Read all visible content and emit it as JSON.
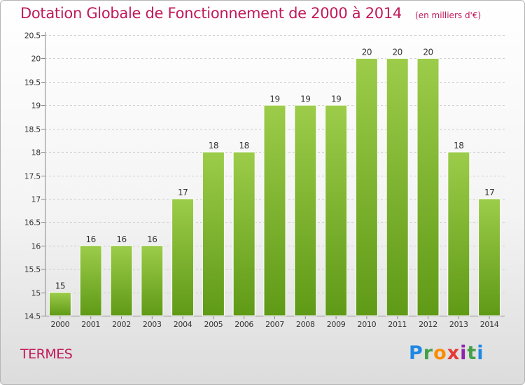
{
  "header": {
    "title": "Dotation Globale de Fonctionnement de 2000 à 2014",
    "unit": "(en milliers d'€)"
  },
  "footer": {
    "commune": "TERMES",
    "logo_letters": [
      "P",
      "r",
      "o",
      "x",
      "i",
      "t",
      "i"
    ]
  },
  "colors": {
    "title": "#c2185b",
    "bar_top": "#9ccc4a",
    "bar_bottom": "#5f9a16",
    "grid": "#cccccc"
  },
  "chart_data": {
    "type": "bar",
    "categories": [
      "2000",
      "2001",
      "2002",
      "2003",
      "2004",
      "2005",
      "2006",
      "2007",
      "2008",
      "2009",
      "2010",
      "2011",
      "2012",
      "2013",
      "2014"
    ],
    "values": [
      15,
      16,
      16,
      16,
      17,
      18,
      18,
      19,
      19,
      19,
      20,
      20,
      20,
      18,
      17
    ],
    "data_labels": [
      "15",
      "16",
      "16",
      "16",
      "17",
      "18",
      "18",
      "19",
      "19",
      "19",
      "20",
      "20",
      "20",
      "18",
      "17"
    ],
    "ylim": [
      14.5,
      20.5
    ],
    "yticks": [
      "14.5",
      "15",
      "15.5",
      "16",
      "16.5",
      "17",
      "17.5",
      "18",
      "18.5",
      "19",
      "19.5",
      "20",
      "20.5"
    ],
    "grid": true,
    "xlabel": "",
    "ylabel": ""
  }
}
